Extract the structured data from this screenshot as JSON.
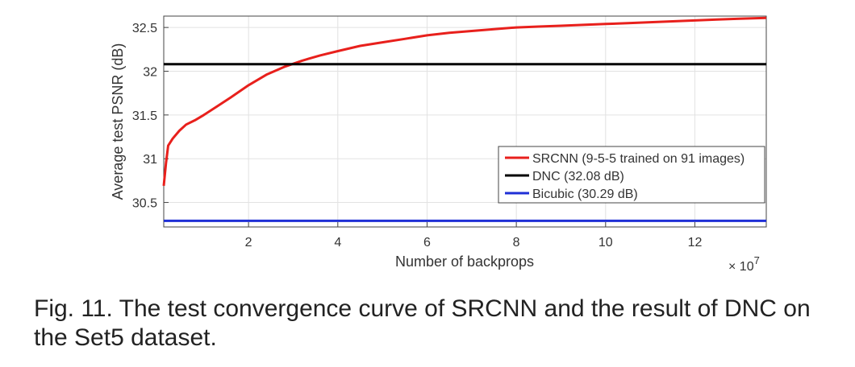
{
  "chart_data": {
    "type": "line",
    "xlabel": "Number of backprops",
    "ylabel": "Average test PSNR (dB)",
    "x_multiplier_label": "× 10",
    "x_multiplier_exp": "7",
    "xlim": [
      0.1,
      13.6
    ],
    "ylim": [
      30.22,
      32.63
    ],
    "xticks": [
      2,
      4,
      6,
      8,
      10,
      12
    ],
    "yticks": [
      30.5,
      31,
      31.5,
      32,
      32.5
    ],
    "xtick_labels": [
      "2",
      "4",
      "6",
      "8",
      "10",
      "12"
    ],
    "ytick_labels": [
      "30.5",
      "31",
      "31.5",
      "32",
      "32.5"
    ],
    "grid": true,
    "legend_position": "bottom-right",
    "series": [
      {
        "name": "SRCNN (9-5-5 trained on 91 images)",
        "color": "#e8201c",
        "x": [
          0.1,
          0.15,
          0.2,
          0.3,
          0.45,
          0.6,
          0.8,
          1.0,
          1.3,
          1.6,
          2.0,
          2.4,
          2.8,
          3.2,
          3.6,
          4.0,
          4.5,
          5.0,
          5.5,
          6.0,
          6.5,
          7.0,
          7.5,
          8.0,
          8.5,
          9.0,
          9.5,
          10.0,
          10.5,
          11.0,
          11.5,
          12.0,
          12.5,
          13.0,
          13.6
        ],
        "values": [
          30.69,
          30.95,
          31.15,
          31.23,
          31.32,
          31.39,
          31.44,
          31.5,
          31.6,
          31.7,
          31.84,
          31.96,
          32.05,
          32.12,
          32.18,
          32.23,
          32.29,
          32.33,
          32.37,
          32.41,
          32.44,
          32.46,
          32.48,
          32.5,
          32.51,
          32.52,
          32.53,
          32.54,
          32.55,
          32.56,
          32.57,
          32.58,
          32.59,
          32.6,
          32.61
        ]
      },
      {
        "name": "DNC (32.08 dB)",
        "color": "#000000",
        "x": [
          0.1,
          13.6
        ],
        "values": [
          32.08,
          32.08
        ]
      },
      {
        "name": "Bicubic (30.29 dB)",
        "color": "#1f2fd6",
        "x": [
          0.1,
          13.6
        ],
        "values": [
          30.29,
          30.29
        ]
      }
    ]
  },
  "caption": "Fig. 11. The test convergence curve of SRCNN and the result of DNC on the Set5 dataset."
}
